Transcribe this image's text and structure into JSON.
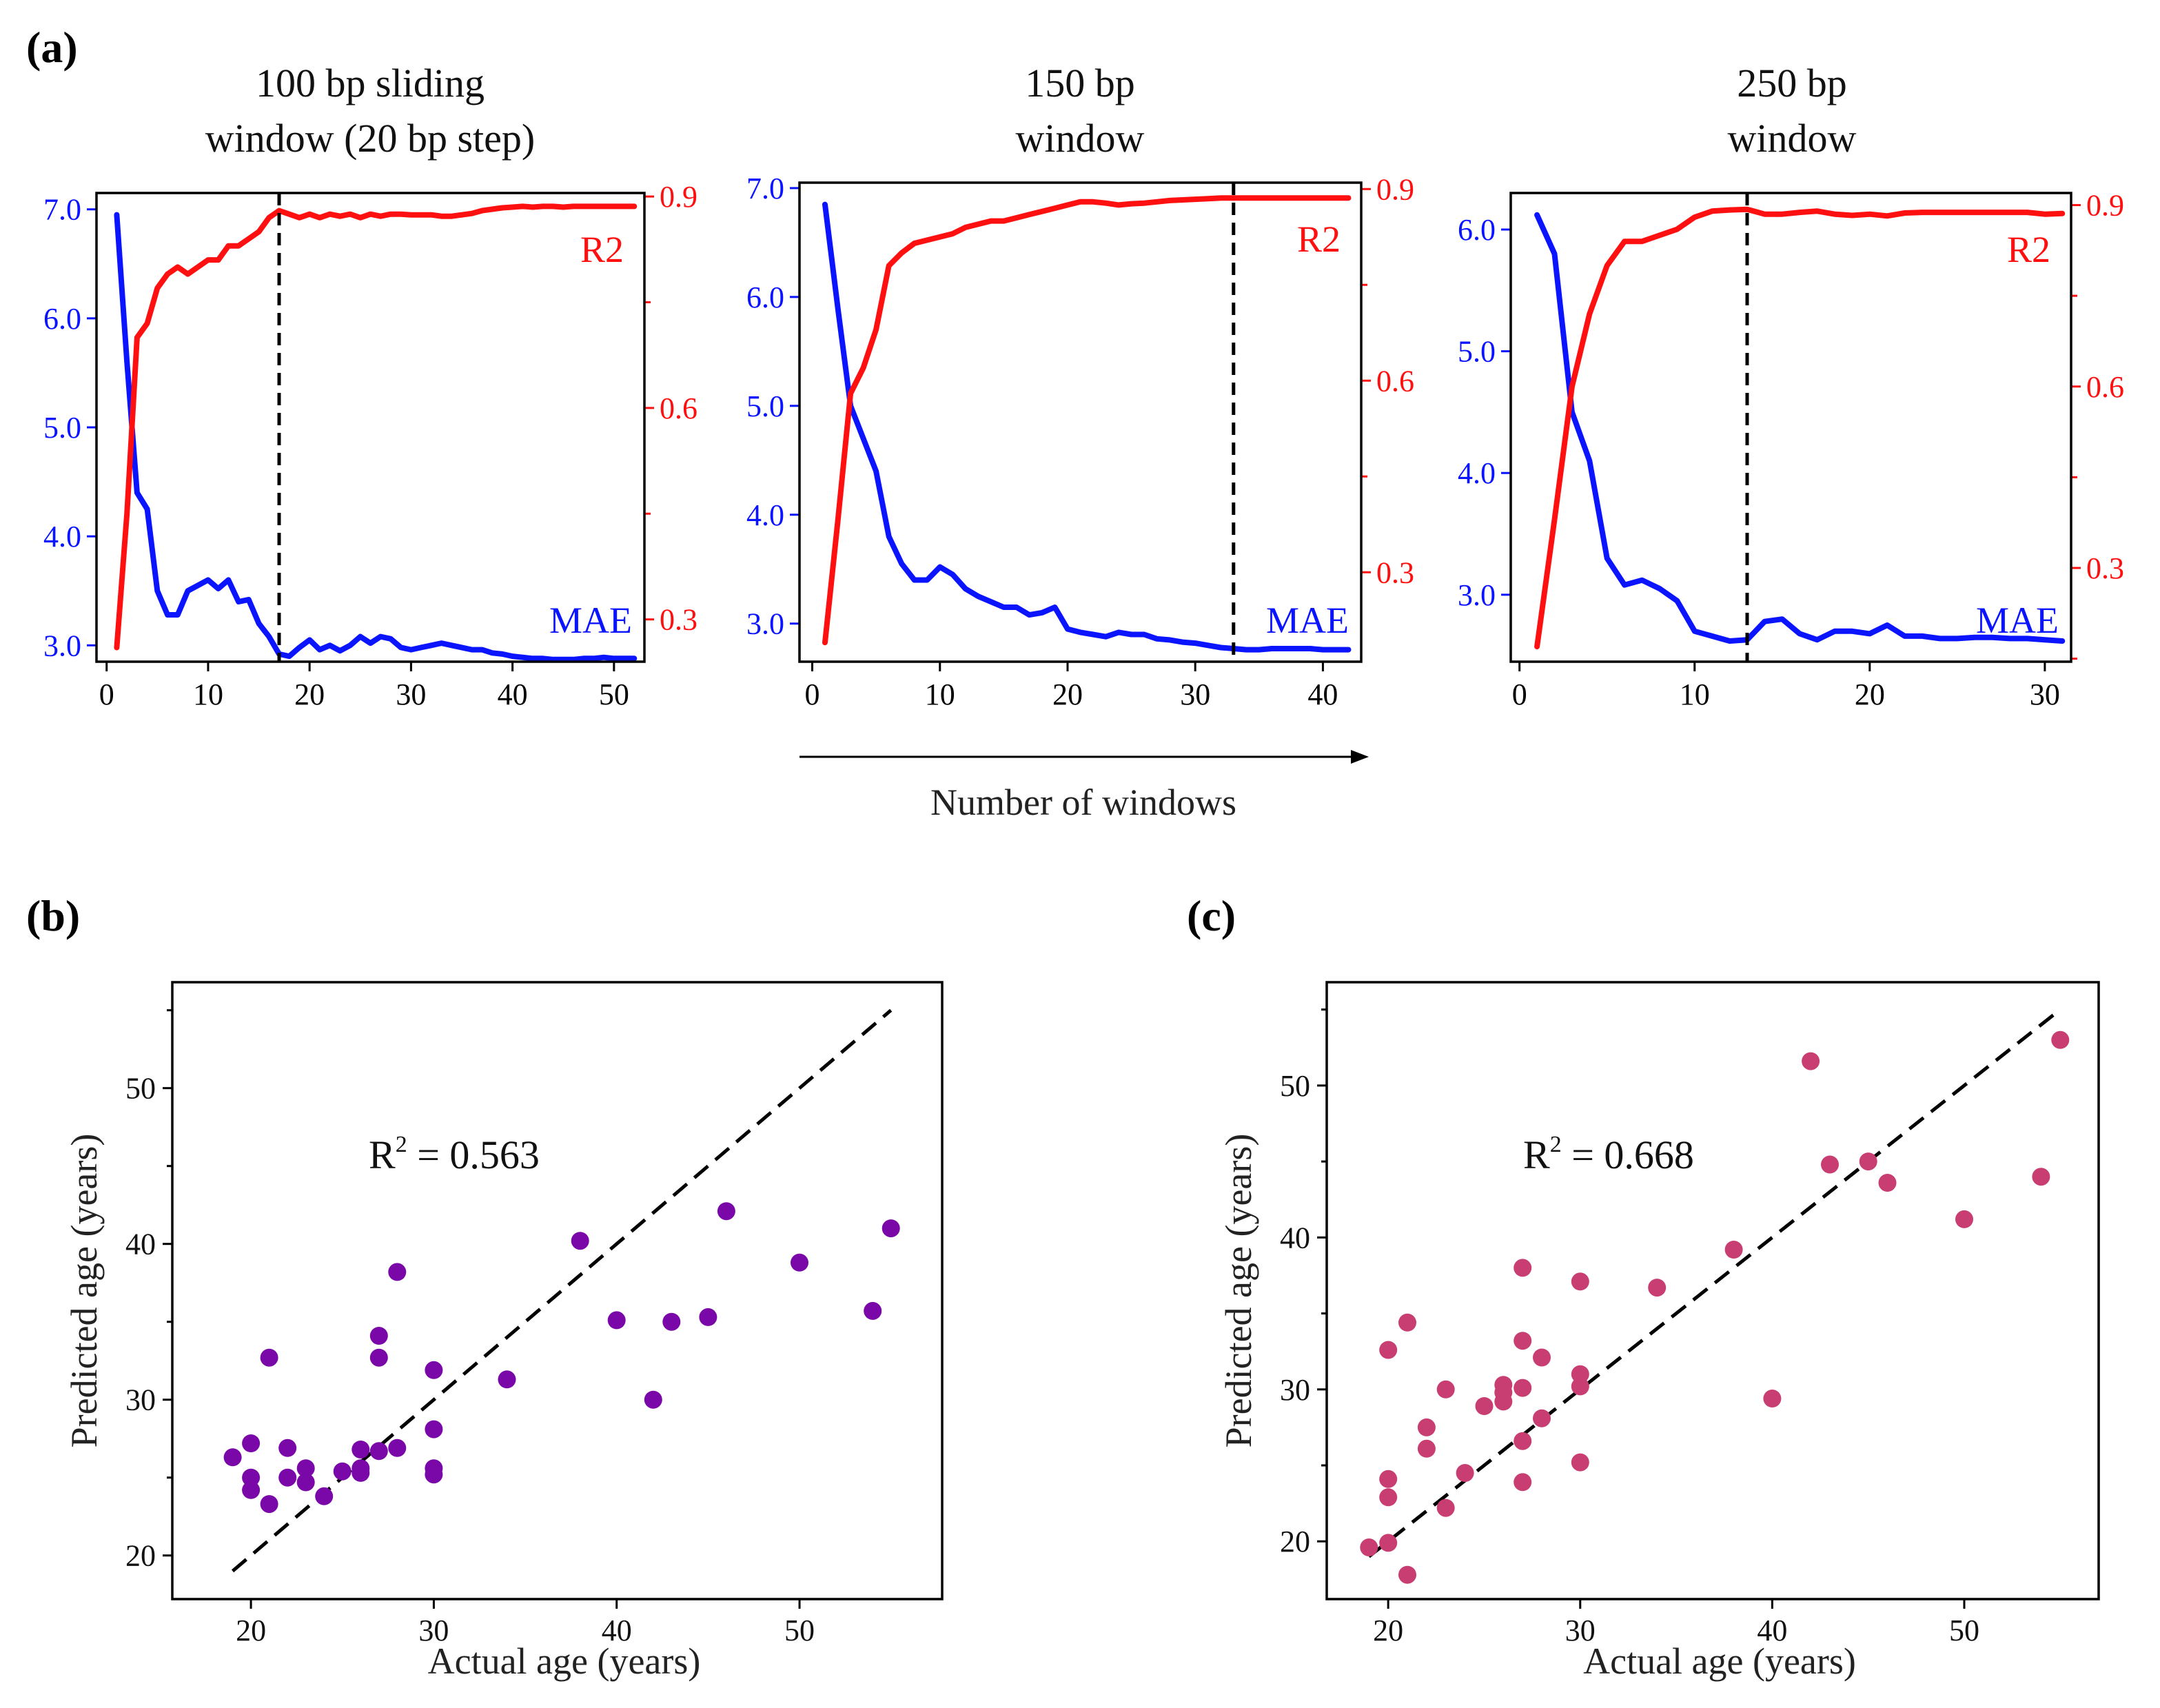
{
  "panel_labels": {
    "a": "(a)",
    "b": "(b)",
    "c": "(c)"
  },
  "shared_xlabel": "Number of windows",
  "colors": {
    "mae": "#0a14ff",
    "r2": "#ff1010",
    "b_points": "#7a07a8",
    "c_points": "#c83e72",
    "vline": "#000000"
  },
  "chart_data": [
    {
      "type": "line",
      "title": [
        "100 bp sliding",
        "window (20 bp step)"
      ],
      "xlabel": "",
      "xlim": [
        -1,
        53
      ],
      "xticks": [
        0,
        10,
        20,
        30,
        40,
        50
      ],
      "y_left": {
        "label": "MAE",
        "lim": [
          2.85,
          7.15
        ],
        "ticks": [
          "3.0",
          "4.0",
          "5.0",
          "6.0",
          "7.0"
        ]
      },
      "y_right": {
        "label": "R2",
        "lim": [
          0.24,
          0.905
        ],
        "ticks": [
          "0.3",
          "0.6",
          "0.9"
        ]
      },
      "vline_x": 17,
      "series": [
        {
          "name": "MAE",
          "x": [
            1,
            2,
            3,
            4,
            5,
            6,
            7,
            8,
            9,
            10,
            11,
            12,
            13,
            14,
            15,
            16,
            17,
            18,
            19,
            20,
            21,
            22,
            23,
            24,
            25,
            26,
            27,
            28,
            29,
            30,
            31,
            32,
            33,
            34,
            35,
            36,
            37,
            38,
            39,
            40,
            41,
            42,
            43,
            44,
            45,
            46,
            47,
            48,
            49,
            50,
            51,
            52
          ],
          "values": [
            6.95,
            5.6,
            4.4,
            4.25,
            3.5,
            3.28,
            3.28,
            3.5,
            3.55,
            3.6,
            3.52,
            3.6,
            3.4,
            3.42,
            3.2,
            3.08,
            2.92,
            2.9,
            2.98,
            3.05,
            2.96,
            3.0,
            2.95,
            3.0,
            3.08,
            3.02,
            3.08,
            3.06,
            2.98,
            2.96,
            2.98,
            3.0,
            3.02,
            3.0,
            2.98,
            2.96,
            2.96,
            2.93,
            2.92,
            2.9,
            2.89,
            2.88,
            2.88,
            2.87,
            2.87,
            2.87,
            2.88,
            2.88,
            2.89,
            2.88,
            2.88,
            2.88
          ]
        },
        {
          "name": "R2",
          "x": [
            1,
            2,
            3,
            4,
            5,
            6,
            7,
            8,
            9,
            10,
            11,
            12,
            13,
            14,
            15,
            16,
            17,
            18,
            19,
            20,
            21,
            22,
            23,
            24,
            25,
            26,
            27,
            28,
            29,
            30,
            31,
            32,
            33,
            34,
            35,
            36,
            37,
            38,
            39,
            40,
            41,
            42,
            43,
            44,
            45,
            46,
            47,
            48,
            49,
            50,
            51,
            52
          ],
          "values": [
            0.26,
            0.45,
            0.7,
            0.72,
            0.77,
            0.79,
            0.8,
            0.79,
            0.8,
            0.81,
            0.81,
            0.83,
            0.83,
            0.84,
            0.85,
            0.87,
            0.88,
            0.875,
            0.87,
            0.875,
            0.87,
            0.875,
            0.872,
            0.875,
            0.87,
            0.875,
            0.872,
            0.875,
            0.875,
            0.874,
            0.874,
            0.874,
            0.872,
            0.872,
            0.874,
            0.876,
            0.88,
            0.882,
            0.884,
            0.885,
            0.886,
            0.885,
            0.886,
            0.886,
            0.885,
            0.886,
            0.886,
            0.886,
            0.886,
            0.886,
            0.886,
            0.886
          ]
        }
      ]
    },
    {
      "type": "line",
      "title": [
        "150 bp",
        "window"
      ],
      "xlabel": "",
      "xlim": [
        -1,
        43
      ],
      "xticks": [
        0,
        10,
        20,
        30,
        40
      ],
      "y_left": {
        "label": "MAE",
        "lim": [
          2.65,
          7.05
        ],
        "ticks": [
          "3.0",
          "4.0",
          "5.0",
          "6.0",
          "7.0"
        ]
      },
      "y_right": {
        "label": "R2",
        "lim": [
          0.16,
          0.91
        ],
        "ticks": [
          "0.3",
          "0.6",
          "0.9"
        ]
      },
      "vline_x": 33,
      "series": [
        {
          "name": "MAE",
          "x": [
            1,
            2,
            3,
            4,
            5,
            6,
            7,
            8,
            9,
            10,
            11,
            12,
            13,
            14,
            15,
            16,
            17,
            18,
            19,
            20,
            21,
            22,
            23,
            24,
            25,
            26,
            27,
            28,
            29,
            30,
            31,
            32,
            33,
            34,
            35,
            36,
            37,
            38,
            39,
            40,
            41,
            42
          ],
          "values": [
            6.85,
            5.9,
            5.0,
            4.7,
            4.4,
            3.8,
            3.55,
            3.4,
            3.4,
            3.52,
            3.45,
            3.32,
            3.25,
            3.2,
            3.15,
            3.15,
            3.08,
            3.1,
            3.15,
            2.95,
            2.92,
            2.9,
            2.88,
            2.92,
            2.9,
            2.9,
            2.86,
            2.85,
            2.83,
            2.82,
            2.8,
            2.78,
            2.77,
            2.76,
            2.76,
            2.77,
            2.77,
            2.77,
            2.77,
            2.76,
            2.76,
            2.76
          ]
        },
        {
          "name": "R2",
          "x": [
            1,
            2,
            3,
            4,
            5,
            6,
            7,
            8,
            9,
            10,
            11,
            12,
            13,
            14,
            15,
            16,
            17,
            18,
            19,
            20,
            21,
            22,
            23,
            24,
            25,
            26,
            27,
            28,
            29,
            30,
            31,
            32,
            33,
            34,
            35,
            36,
            37,
            38,
            39,
            40,
            41,
            42
          ],
          "values": [
            0.19,
            0.38,
            0.58,
            0.62,
            0.68,
            0.78,
            0.8,
            0.815,
            0.82,
            0.825,
            0.83,
            0.84,
            0.845,
            0.85,
            0.85,
            0.855,
            0.86,
            0.865,
            0.87,
            0.875,
            0.88,
            0.88,
            0.878,
            0.875,
            0.877,
            0.878,
            0.88,
            0.882,
            0.883,
            0.884,
            0.885,
            0.886,
            0.886,
            0.886,
            0.886,
            0.886,
            0.886,
            0.886,
            0.886,
            0.886,
            0.886,
            0.886
          ]
        }
      ]
    },
    {
      "type": "line",
      "title": [
        "250 bp",
        "window"
      ],
      "xlabel": "",
      "xlim": [
        -0.5,
        31.5
      ],
      "xticks": [
        0,
        10,
        20,
        30
      ],
      "y_left": {
        "label": "MAE",
        "lim": [
          2.45,
          6.3
        ],
        "ticks": [
          "3.0",
          "4.0",
          "5.0",
          "6.0"
        ]
      },
      "y_right": {
        "label": "R2",
        "lim": [
          0.145,
          0.92
        ],
        "ticks": [
          "0.3",
          "0.6",
          "0.9"
        ]
      },
      "vline_x": 13,
      "series": [
        {
          "name": "MAE",
          "x": [
            1,
            2,
            3,
            4,
            5,
            6,
            7,
            8,
            9,
            10,
            11,
            12,
            13,
            14,
            15,
            16,
            17,
            18,
            19,
            20,
            21,
            22,
            23,
            24,
            25,
            26,
            27,
            28,
            29,
            30,
            31
          ],
          "values": [
            6.12,
            5.8,
            4.5,
            4.1,
            3.3,
            3.08,
            3.12,
            3.05,
            2.95,
            2.7,
            2.66,
            2.62,
            2.63,
            2.78,
            2.8,
            2.68,
            2.63,
            2.7,
            2.7,
            2.68,
            2.75,
            2.66,
            2.66,
            2.64,
            2.64,
            2.65,
            2.65,
            2.64,
            2.64,
            2.63,
            2.62
          ]
        },
        {
          "name": "R2",
          "x": [
            1,
            2,
            3,
            4,
            5,
            6,
            7,
            8,
            9,
            10,
            11,
            12,
            13,
            14,
            15,
            16,
            17,
            18,
            19,
            20,
            21,
            22,
            23,
            24,
            25,
            26,
            27,
            28,
            29,
            30,
            31
          ],
          "values": [
            0.17,
            0.38,
            0.6,
            0.72,
            0.8,
            0.84,
            0.84,
            0.85,
            0.86,
            0.88,
            0.89,
            0.892,
            0.893,
            0.885,
            0.885,
            0.888,
            0.89,
            0.885,
            0.883,
            0.885,
            0.882,
            0.887,
            0.888,
            0.888,
            0.888,
            0.888,
            0.888,
            0.888,
            0.888,
            0.885,
            0.886
          ]
        }
      ]
    },
    {
      "type": "scatter",
      "xlabel": "Actual age (years)",
      "ylabel": "Predicted age (years)",
      "xlim": [
        15.7,
        57.8
      ],
      "ylim": [
        17.2,
        56.8
      ],
      "xticks": [
        20,
        30,
        40,
        50
      ],
      "yticks": [
        20,
        30,
        40,
        50
      ],
      "annotation": {
        "prefix": "R",
        "sup": "2",
        "value": " = 0.563"
      },
      "identity_line": [
        [
          19,
          19
        ],
        [
          55,
          55
        ]
      ],
      "points": [
        [
          19,
          26.3
        ],
        [
          20,
          27.2
        ],
        [
          20,
          25.0
        ],
        [
          20,
          24.2
        ],
        [
          21,
          32.7
        ],
        [
          21,
          23.3
        ],
        [
          22,
          26.9
        ],
        [
          22,
          25.0
        ],
        [
          23,
          25.6
        ],
        [
          23,
          24.7
        ],
        [
          24,
          23.8
        ],
        [
          25,
          25.4
        ],
        [
          26,
          26.8
        ],
        [
          26,
          25.6
        ],
        [
          26,
          25.3
        ],
        [
          27,
          34.1
        ],
        [
          27,
          32.7
        ],
        [
          27,
          26.7
        ],
        [
          28,
          38.2
        ],
        [
          28,
          26.9
        ],
        [
          30,
          31.9
        ],
        [
          30,
          28.1
        ],
        [
          30,
          25.6
        ],
        [
          30,
          25.2
        ],
        [
          34,
          31.3
        ],
        [
          38,
          40.2
        ],
        [
          40,
          35.1
        ],
        [
          42,
          30.0
        ],
        [
          43,
          35.0
        ],
        [
          45,
          35.3
        ],
        [
          46,
          42.1
        ],
        [
          50,
          38.8
        ],
        [
          54,
          35.7
        ],
        [
          55,
          41.0
        ]
      ]
    },
    {
      "type": "scatter",
      "xlabel": "Actual age (years)",
      "ylabel": "Predicted age (years)",
      "xlim": [
        16.8,
        57.0
      ],
      "ylim": [
        16.2,
        56.8
      ],
      "xticks": [
        20,
        30,
        40,
        50
      ],
      "yticks": [
        20,
        30,
        40,
        50
      ],
      "annotation": {
        "prefix": "R",
        "sup": "2",
        "value": " = 0.668"
      },
      "identity_line": [
        [
          19,
          19
        ],
        [
          55,
          55
        ]
      ],
      "points": [
        [
          19,
          19.6
        ],
        [
          20,
          19.9
        ],
        [
          20,
          22.9
        ],
        [
          20,
          24.1
        ],
        [
          20,
          32.6
        ],
        [
          21,
          34.4
        ],
        [
          21,
          17.8
        ],
        [
          22,
          27.5
        ],
        [
          22,
          26.1
        ],
        [
          23,
          30.0
        ],
        [
          23,
          22.2
        ],
        [
          24,
          24.5
        ],
        [
          25,
          28.9
        ],
        [
          26,
          29.2
        ],
        [
          26,
          29.8
        ],
        [
          26,
          30.3
        ],
        [
          27,
          38.0
        ],
        [
          27,
          33.2
        ],
        [
          27,
          30.1
        ],
        [
          27,
          26.6
        ],
        [
          27,
          23.9
        ],
        [
          28,
          32.1
        ],
        [
          28,
          28.1
        ],
        [
          30,
          37.1
        ],
        [
          30,
          31.0
        ],
        [
          30,
          30.2
        ],
        [
          30,
          25.2
        ],
        [
          34,
          36.7
        ],
        [
          38,
          39.2
        ],
        [
          40,
          29.4
        ],
        [
          42,
          51.6
        ],
        [
          43,
          44.8
        ],
        [
          45,
          45.0
        ],
        [
          46,
          43.6
        ],
        [
          50,
          41.2
        ],
        [
          54,
          44.0
        ],
        [
          55,
          53.0
        ]
      ]
    }
  ]
}
